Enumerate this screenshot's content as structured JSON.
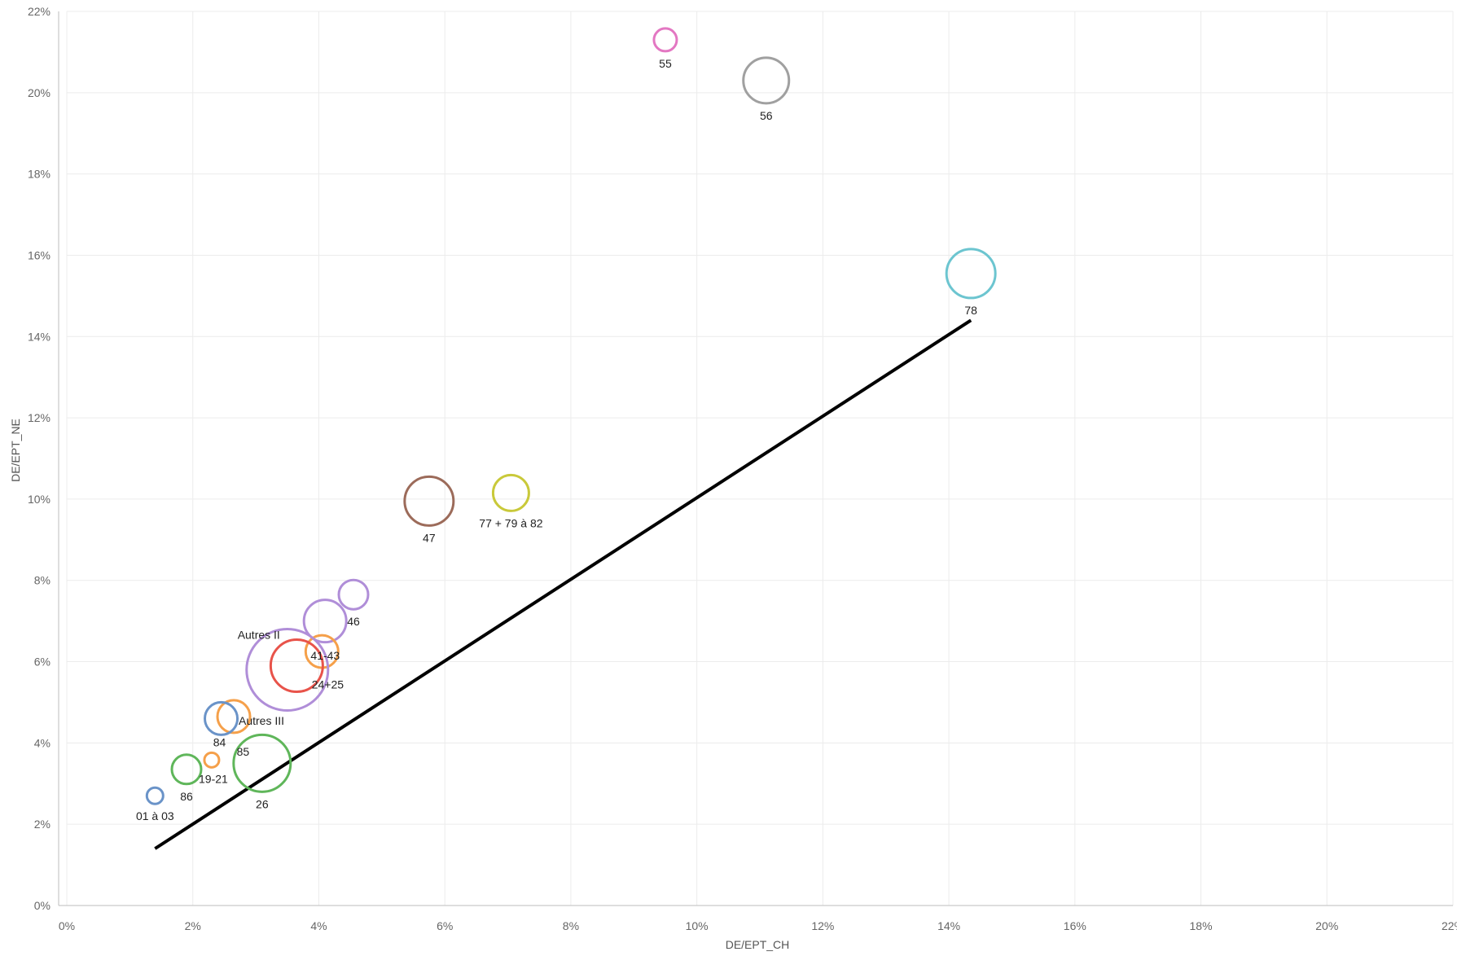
{
  "chart_data": {
    "type": "scatter",
    "subtype": "bubble",
    "xlabel": "DE/EPT_CH",
    "ylabel": "DE/EPT_NE",
    "xlim": [
      0,
      22
    ],
    "ylim": [
      0,
      22
    ],
    "x_ticks": [
      "0%",
      "2%",
      "4%",
      "6%",
      "8%",
      "10%",
      "12%",
      "14%",
      "16%",
      "18%",
      "20%",
      "22%"
    ],
    "y_ticks": [
      "0%",
      "2%",
      "4%",
      "6%",
      "8%",
      "10%",
      "12%",
      "14%",
      "16%",
      "18%",
      "20%",
      "22%"
    ],
    "grid": true,
    "points": [
      {
        "label": "55",
        "x": 9.5,
        "y": 21.3,
        "r": 14,
        "color": "#e377c2"
      },
      {
        "label": "56",
        "x": 11.1,
        "y": 20.3,
        "r": 28,
        "color": "#a0a0a0"
      },
      {
        "label": "78",
        "x": 14.35,
        "y": 15.55,
        "r": 30,
        "color": "#6cc5d0"
      },
      {
        "label": "47",
        "x": 5.75,
        "y": 9.95,
        "r": 30,
        "color": "#9c6b5a"
      },
      {
        "label": "77 + 79 à 82",
        "x": 7.05,
        "y": 10.15,
        "r": 22,
        "color": "#c9c93a"
      },
      {
        "label": "46",
        "x": 4.55,
        "y": 7.65,
        "r": 18,
        "color": "#b08ed8"
      },
      {
        "label": "",
        "x": 4.1,
        "y": 7.0,
        "r": 26,
        "color": "#b08ed8"
      },
      {
        "label": "41-43",
        "x": 4.05,
        "y": 6.25,
        "r": 20,
        "color": "#f5a04a"
      },
      {
        "label": "24+25",
        "x": 3.65,
        "y": 5.9,
        "r": 32,
        "color": "#e8534a"
      },
      {
        "label": "Autres II",
        "x": 3.5,
        "y": 5.8,
        "r": 50,
        "color": "#b08ed8"
      },
      {
        "label": "Autres III",
        "x": 2.65,
        "y": 4.65,
        "r": 20,
        "color": "#f5a04a"
      },
      {
        "label": "84",
        "x": 2.45,
        "y": 4.6,
        "r": 20,
        "color": "#6a93c8"
      },
      {
        "label": "85",
        "x": 2.72,
        "y": 4.45,
        "r": 0,
        "color": "#f5a04a"
      },
      {
        "label": "26",
        "x": 3.1,
        "y": 3.5,
        "r": 35,
        "color": "#5fb65a"
      },
      {
        "label": "86",
        "x": 1.9,
        "y": 3.35,
        "r": 18,
        "color": "#5fb65a"
      },
      {
        "label": "19-21",
        "x": 2.3,
        "y": 3.58,
        "r": 9,
        "color": "#f5a04a"
      },
      {
        "label": "01 à 03",
        "x": 1.4,
        "y": 2.7,
        "r": 10,
        "color": "#6a93c8"
      }
    ],
    "trend_line": {
      "x": [
        1.4,
        14.35
      ],
      "y": [
        1.4,
        14.4
      ],
      "color": "#000000"
    }
  }
}
